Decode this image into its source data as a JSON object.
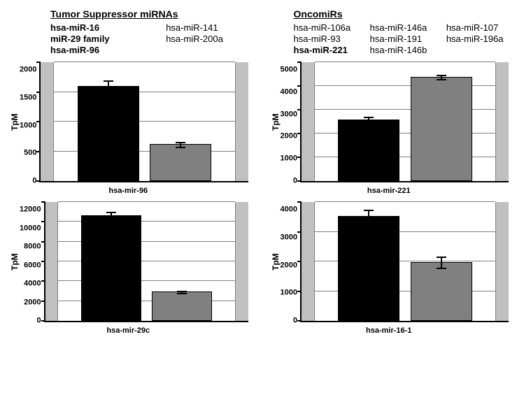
{
  "headers": {
    "left": {
      "title": "Tumor Suppressor miRNAs",
      "items": [
        {
          "text": "hsa-miR-16",
          "bold": true
        },
        {
          "text": "miR-29 family",
          "bold": true
        },
        {
          "text": "hsa-miR-96",
          "bold": true
        },
        {
          "text": "hsa-miR-141",
          "bold": false
        },
        {
          "text": "hsa-miR-200a",
          "bold": false
        }
      ]
    },
    "right": {
      "title": "OncomiRs",
      "items": [
        {
          "text": "hsa-miR-106a",
          "bold": false
        },
        {
          "text": "hsa-miR-93",
          "bold": false
        },
        {
          "text": "hsa-miR-221",
          "bold": true
        },
        {
          "text": "hsa-miR-146a",
          "bold": false
        },
        {
          "text": "hsa-miR-191",
          "bold": false
        },
        {
          "text": "hsa-miR-146b",
          "bold": false
        },
        {
          "text": "hsa-miR-107",
          "bold": false
        },
        {
          "text": "hsa-miR-196a",
          "bold": false
        }
      ]
    }
  },
  "charts": [
    {
      "id": "mir96",
      "xlabel": "hsa-mir-96",
      "ylabel": "TpM",
      "ymax": 2000,
      "ystep": 500,
      "bars": [
        {
          "value": 1600,
          "err": 100,
          "color": "#000000"
        },
        {
          "value": 620,
          "err": 40,
          "color": "#808080"
        }
      ]
    },
    {
      "id": "mir221",
      "xlabel": "hsa-mir-221",
      "ylabel": "TpM",
      "ymax": 5000,
      "ystep": 1000,
      "bars": [
        {
          "value": 2580,
          "err": 120,
          "color": "#000000"
        },
        {
          "value": 4380,
          "err": 80,
          "color": "#808080"
        }
      ]
    },
    {
      "id": "mir29c",
      "xlabel": "hsa-mir-29c",
      "ylabel": "TpM",
      "ymax": 12000,
      "ystep": 2000,
      "bars": [
        {
          "value": 10650,
          "err": 400,
          "color": "#000000"
        },
        {
          "value": 2950,
          "err": 100,
          "color": "#808080"
        }
      ]
    },
    {
      "id": "mir16",
      "xlabel": "hsa-mir-16-1",
      "ylabel": "TpM",
      "ymax": 4000,
      "ystep": 1000,
      "bars": [
        {
          "value": 3530,
          "err": 220,
          "color": "#000000"
        },
        {
          "value": 1980,
          "err": 200,
          "color": "#808080"
        }
      ]
    }
  ],
  "style": {
    "grid_color": "#808080",
    "plot_bg": "#ffffff",
    "outer_bg": "#c0c0c0",
    "axis_color": "#000000",
    "font": "Arial",
    "label_fontsize": 11,
    "ylabel_fontsize": 12
  }
}
